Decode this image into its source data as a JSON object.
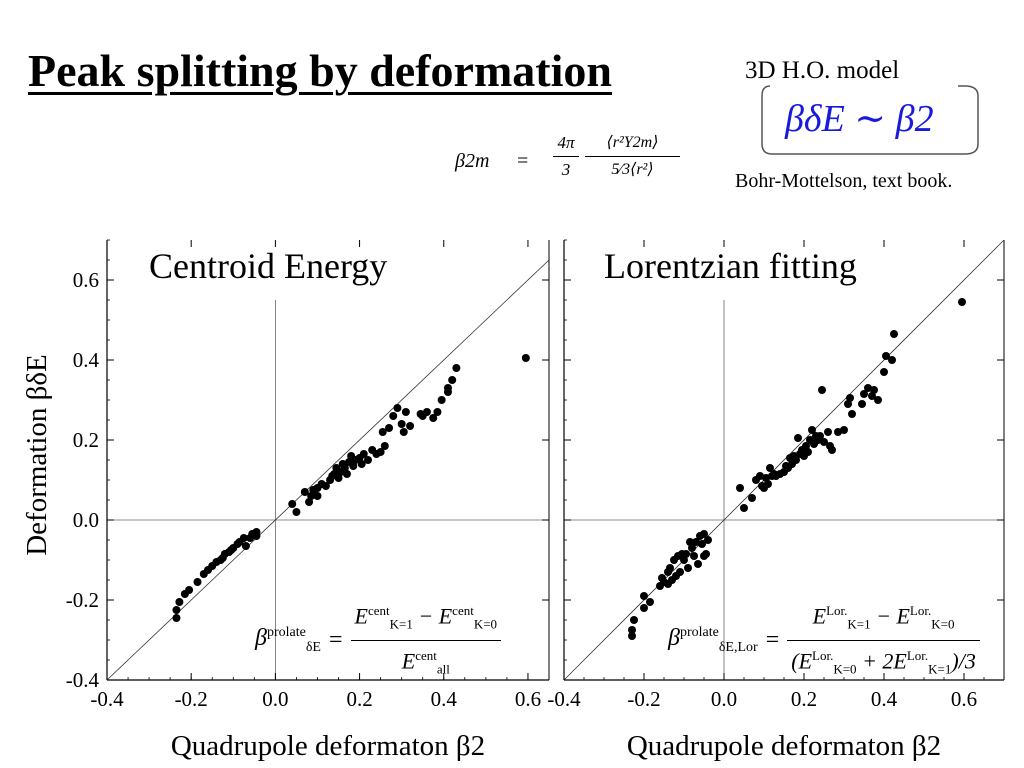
{
  "header": {
    "title": "Peak splitting by deformation",
    "formula": {
      "lhs": "β2m",
      "eq": "=",
      "coef_num": "4π",
      "coef_den": "3",
      "num": "⟨r²Y2m⟩",
      "den": "5⁄3⟨r²⟩"
    },
    "model_label": "3D H.O. model",
    "model_formula": "βδE ∼ β2",
    "reference": "Bohr-Mottelson, text book."
  },
  "y_axis_label": "Deformation βδE",
  "chart_data": [
    {
      "type": "scatter",
      "title": "Centroid Energy",
      "xlabel": "Quadrupole deformaton β2",
      "ylabel": "Deformation βδE",
      "xlim": [
        -0.4,
        0.65
      ],
      "ylim": [
        -0.4,
        0.7
      ],
      "xticks": [
        -0.4,
        -0.2,
        0.0,
        0.2,
        0.4,
        0.6
      ],
      "yticks": [
        -0.4,
        -0.2,
        0.0,
        0.2,
        0.4,
        0.6
      ],
      "x_tick_labels": [
        "-0.4",
        "-0.2",
        "0.0",
        "0.2",
        "0.4",
        "0.6"
      ],
      "y_tick_labels": [
        "-0.4",
        "-0.2",
        "0.0",
        "0.2",
        "0.4",
        "0.6"
      ],
      "reference_line": "y = x",
      "zero_lines": true,
      "annotation": {
        "lead": "β",
        "lead_sup": "prolate",
        "lead_sub": "δE",
        "eq": "=",
        "num_a": "E",
        "num_a_sup": "cent",
        "num_a_sub": "K=1",
        "minus": "−",
        "num_b": "E",
        "num_b_sup": "cent",
        "num_b_sub": "K=0",
        "den": "E",
        "den_sup": "cent",
        "den_sub": "all"
      },
      "points": [
        [
          -0.235,
          -0.245
        ],
        [
          -0.235,
          -0.225
        ],
        [
          -0.228,
          -0.205
        ],
        [
          -0.215,
          -0.185
        ],
        [
          -0.205,
          -0.175
        ],
        [
          -0.185,
          -0.155
        ],
        [
          -0.17,
          -0.135
        ],
        [
          -0.16,
          -0.125
        ],
        [
          -0.15,
          -0.115
        ],
        [
          -0.14,
          -0.105
        ],
        [
          -0.13,
          -0.1
        ],
        [
          -0.125,
          -0.095
        ],
        [
          -0.12,
          -0.085
        ],
        [
          -0.11,
          -0.08
        ],
        [
          -0.105,
          -0.075
        ],
        [
          -0.1,
          -0.07
        ],
        [
          -0.09,
          -0.06
        ],
        [
          -0.085,
          -0.055
        ],
        [
          -0.075,
          -0.045
        ],
        [
          -0.07,
          -0.065
        ],
        [
          -0.06,
          -0.045
        ],
        [
          -0.055,
          -0.035
        ],
        [
          -0.045,
          -0.04
        ],
        [
          -0.045,
          -0.03
        ],
        [
          0.04,
          0.04
        ],
        [
          0.05,
          0.02
        ],
        [
          0.07,
          0.07
        ],
        [
          0.08,
          0.045
        ],
        [
          0.085,
          0.06
        ],
        [
          0.09,
          0.075
        ],
        [
          0.1,
          0.08
        ],
        [
          0.1,
          0.06
        ],
        [
          0.11,
          0.09
        ],
        [
          0.12,
          0.085
        ],
        [
          0.13,
          0.1
        ],
        [
          0.135,
          0.11
        ],
        [
          0.14,
          0.115
        ],
        [
          0.145,
          0.13
        ],
        [
          0.15,
          0.105
        ],
        [
          0.155,
          0.12
        ],
        [
          0.16,
          0.14
        ],
        [
          0.165,
          0.13
        ],
        [
          0.17,
          0.115
        ],
        [
          0.175,
          0.145
        ],
        [
          0.18,
          0.16
        ],
        [
          0.185,
          0.135
        ],
        [
          0.19,
          0.15
        ],
        [
          0.2,
          0.155
        ],
        [
          0.205,
          0.14
        ],
        [
          0.21,
          0.165
        ],
        [
          0.22,
          0.15
        ],
        [
          0.23,
          0.175
        ],
        [
          0.24,
          0.165
        ],
        [
          0.25,
          0.17
        ],
        [
          0.26,
          0.185
        ],
        [
          0.255,
          0.22
        ],
        [
          0.27,
          0.23
        ],
        [
          0.28,
          0.26
        ],
        [
          0.29,
          0.28
        ],
        [
          0.3,
          0.24
        ],
        [
          0.305,
          0.22
        ],
        [
          0.31,
          0.27
        ],
        [
          0.32,
          0.235
        ],
        [
          0.345,
          0.265
        ],
        [
          0.35,
          0.26
        ],
        [
          0.36,
          0.27
        ],
        [
          0.375,
          0.255
        ],
        [
          0.385,
          0.27
        ],
        [
          0.395,
          0.3
        ],
        [
          0.41,
          0.32
        ],
        [
          0.41,
          0.33
        ],
        [
          0.42,
          0.35
        ],
        [
          0.43,
          0.38
        ],
        [
          0.595,
          0.405
        ]
      ]
    },
    {
      "type": "scatter",
      "title": "Lorentzian fitting",
      "xlabel": "Quadrupole deformaton β2",
      "ylabel": "",
      "xlim": [
        -0.4,
        0.7
      ],
      "ylim": [
        -0.4,
        0.7
      ],
      "xticks": [
        -0.4,
        -0.2,
        0.0,
        0.2,
        0.4,
        0.6
      ],
      "yticks": [
        -0.4,
        -0.2,
        0.0,
        0.2,
        0.4,
        0.6
      ],
      "x_tick_labels": [
        "-0.4",
        "-0.2",
        "0.0",
        "0.2",
        "0.4",
        "0.6"
      ],
      "y_tick_labels": [],
      "reference_line": "y = x",
      "zero_lines": true,
      "annotation": {
        "lead": "β",
        "lead_sup": "prolate",
        "lead_sub": "δE,Lor",
        "eq": "=",
        "num_a": "E",
        "num_a_sup": "Lor.",
        "num_a_sub": "K=1",
        "minus": "−",
        "num_b": "E",
        "num_b_sup": "Lor.",
        "num_b_sub": "K=0",
        "den": "(E",
        "den_sup": "Lor.",
        "den_sub": "K=0",
        "den_mid": " + 2E",
        "den2_sup": "Lor.",
        "den2_sub": "K=1",
        "den_tail": ")/3"
      },
      "points": [
        [
          -0.23,
          -0.29
        ],
        [
          -0.23,
          -0.275
        ],
        [
          -0.225,
          -0.25
        ],
        [
          -0.2,
          -0.22
        ],
        [
          -0.2,
          -0.19
        ],
        [
          -0.185,
          -0.205
        ],
        [
          -0.16,
          -0.165
        ],
        [
          -0.155,
          -0.145
        ],
        [
          -0.15,
          -0.155
        ],
        [
          -0.14,
          -0.16
        ],
        [
          -0.14,
          -0.13
        ],
        [
          -0.135,
          -0.12
        ],
        [
          -0.13,
          -0.15
        ],
        [
          -0.125,
          -0.1
        ],
        [
          -0.12,
          -0.14
        ],
        [
          -0.115,
          -0.09
        ],
        [
          -0.11,
          -0.13
        ],
        [
          -0.105,
          -0.085
        ],
        [
          -0.1,
          -0.1
        ],
        [
          -0.095,
          -0.085
        ],
        [
          -0.09,
          -0.12
        ],
        [
          -0.085,
          -0.055
        ],
        [
          -0.08,
          -0.07
        ],
        [
          -0.075,
          -0.09
        ],
        [
          -0.07,
          -0.055
        ],
        [
          -0.065,
          -0.11
        ],
        [
          -0.06,
          -0.04
        ],
        [
          -0.055,
          -0.06
        ],
        [
          -0.05,
          -0.035
        ],
        [
          -0.05,
          -0.09
        ],
        [
          -0.045,
          -0.085
        ],
        [
          -0.04,
          -0.05
        ],
        [
          0.04,
          0.08
        ],
        [
          0.05,
          0.03
        ],
        [
          0.07,
          0.055
        ],
        [
          0.08,
          0.1
        ],
        [
          0.09,
          0.11
        ],
        [
          0.095,
          0.085
        ],
        [
          0.1,
          0.08
        ],
        [
          0.105,
          0.105
        ],
        [
          0.11,
          0.09
        ],
        [
          0.115,
          0.13
        ],
        [
          0.12,
          0.11
        ],
        [
          0.125,
          0.115
        ],
        [
          0.13,
          0.11
        ],
        [
          0.14,
          0.115
        ],
        [
          0.15,
          0.12
        ],
        [
          0.155,
          0.135
        ],
        [
          0.16,
          0.13
        ],
        [
          0.165,
          0.155
        ],
        [
          0.17,
          0.14
        ],
        [
          0.175,
          0.16
        ],
        [
          0.18,
          0.15
        ],
        [
          0.185,
          0.205
        ],
        [
          0.19,
          0.165
        ],
        [
          0.195,
          0.175
        ],
        [
          0.2,
          0.16
        ],
        [
          0.205,
          0.185
        ],
        [
          0.21,
          0.17
        ],
        [
          0.215,
          0.2
        ],
        [
          0.22,
          0.225
        ],
        [
          0.225,
          0.19
        ],
        [
          0.23,
          0.21
        ],
        [
          0.235,
          0.2
        ],
        [
          0.24,
          0.21
        ],
        [
          0.245,
          0.325
        ],
        [
          0.25,
          0.195
        ],
        [
          0.26,
          0.22
        ],
        [
          0.265,
          0.185
        ],
        [
          0.27,
          0.175
        ],
        [
          0.285,
          0.22
        ],
        [
          0.3,
          0.225
        ],
        [
          0.31,
          0.29
        ],
        [
          0.315,
          0.305
        ],
        [
          0.32,
          0.265
        ],
        [
          0.345,
          0.29
        ],
        [
          0.35,
          0.315
        ],
        [
          0.36,
          0.33
        ],
        [
          0.37,
          0.31
        ],
        [
          0.375,
          0.325
        ],
        [
          0.385,
          0.3
        ],
        [
          0.4,
          0.37
        ],
        [
          0.405,
          0.41
        ],
        [
          0.42,
          0.4
        ],
        [
          0.425,
          0.465
        ],
        [
          0.595,
          0.545
        ]
      ]
    }
  ]
}
